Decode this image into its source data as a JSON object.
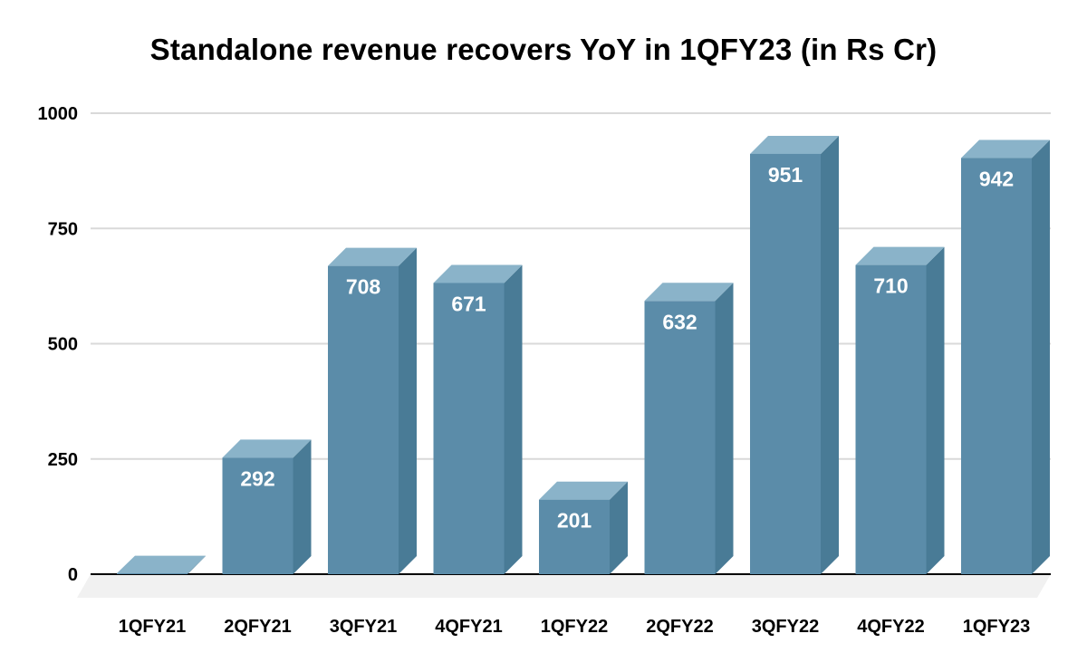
{
  "chart_data": {
    "type": "bar",
    "title": "Standalone revenue recovers YoY in 1QFY23 (in Rs Cr)",
    "categories": [
      "1QFY21",
      "2QFY21",
      "3QFY21",
      "4QFY21",
      "1QFY22",
      "2QFY22",
      "3QFY22",
      "4QFY22",
      "1QFY23"
    ],
    "values": [
      40,
      292,
      708,
      671,
      201,
      632,
      951,
      710,
      942
    ],
    "data_labels": [
      "",
      "292",
      "708",
      "671",
      "201",
      "632",
      "951",
      "710",
      "942"
    ],
    "ylim": [
      0,
      1000
    ],
    "yticks": [
      0,
      250,
      500,
      750,
      1000
    ],
    "xlabel": "",
    "ylabel": "",
    "grid": true,
    "legend": false,
    "style": "3d",
    "colors": {
      "bar_front": "#5b8ca9",
      "bar_top": "#8ab3c9",
      "bar_side": "#497b96",
      "gridline": "#d9d9d9",
      "axis_line": "#000000",
      "floor": "#f1f1f1",
      "value_text": "#ffffff",
      "axis_text": "#000000",
      "background": "#ffffff"
    }
  }
}
